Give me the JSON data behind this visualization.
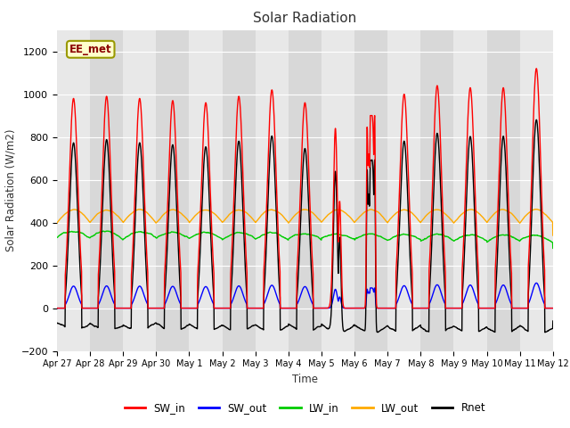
{
  "title": "Solar Radiation",
  "xlabel": "Time",
  "ylabel": "Solar Radiation (W/m2)",
  "ylim": [
    -200,
    1300
  ],
  "yticks": [
    -200,
    0,
    200,
    400,
    600,
    800,
    1000,
    1200
  ],
  "annotation_text": "EE_met",
  "background_color": "#ffffff",
  "plot_bg_color": "#d8d8d8",
  "plot_bg_light": "#e8e8e8",
  "line_colors": {
    "SW_in": "#ff0000",
    "SW_out": "#0000ff",
    "LW_in": "#00cc00",
    "LW_out": "#ffaa00",
    "Rnet": "#000000"
  },
  "n_days": 15,
  "day_labels": [
    "Apr 27",
    "Apr 28",
    "Apr 29",
    "Apr 30",
    "May 1",
    "May 2",
    "May 3",
    "May 4",
    "May 5",
    "May 6",
    "May 7",
    "May 8",
    "May 9",
    "May 10",
    "May 11",
    "May 12"
  ],
  "points_per_day": 144,
  "sw_in_peaks": [
    980,
    990,
    980,
    970,
    960,
    990,
    1020,
    960,
    840,
    830,
    1000,
    1040,
    1030,
    1030,
    1120
  ],
  "lw_in_base": 330,
  "lw_out_base": 400,
  "night_rnet": -90
}
